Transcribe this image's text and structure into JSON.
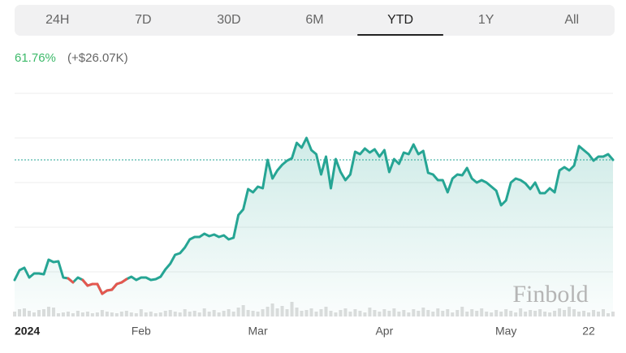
{
  "tabs": [
    "24H",
    "7D",
    "30D",
    "6M",
    "YTD",
    "1Y",
    "All"
  ],
  "active_tab": 4,
  "change": {
    "percent": "61.76%",
    "amount": "(+$26.07K)"
  },
  "watermark": "Finbold",
  "chart_data": {
    "type": "line",
    "categories": [
      "2024",
      null,
      null,
      null,
      null,
      null,
      null,
      null,
      null,
      null,
      null,
      null,
      null,
      null,
      null,
      null,
      null,
      null,
      null,
      null,
      null,
      null,
      null,
      null,
      null,
      null,
      "Feb",
      null,
      null,
      null,
      null,
      null,
      null,
      null,
      null,
      null,
      null,
      null,
      null,
      null,
      null,
      null,
      null,
      null,
      null,
      null,
      null,
      null,
      null,
      null,
      "Mar",
      null,
      null,
      null,
      null,
      null,
      null,
      null,
      null,
      null,
      null,
      null,
      null,
      null,
      null,
      null,
      null,
      null,
      null,
      null,
      null,
      null,
      null,
      null,
      null,
      null,
      "Apr",
      null,
      null,
      null,
      null,
      null,
      null,
      null,
      null,
      null,
      null,
      null,
      null,
      null,
      null,
      null,
      null,
      null,
      null,
      null,
      null,
      null,
      null,
      null,
      null,
      "May",
      null,
      null,
      null,
      null,
      null,
      null,
      null,
      null,
      null,
      null,
      null,
      null,
      null,
      null,
      null,
      null,
      "22",
      null,
      null,
      null,
      null,
      null
    ],
    "series": [
      {
        "color": "#26a594",
        "down_color": "#e5574f",
        "values": [
          45,
          57,
          60,
          48,
          53,
          53,
          52,
          70,
          67,
          68,
          48,
          47,
          42,
          48,
          45,
          38,
          40,
          40,
          28,
          32,
          33,
          40,
          42,
          46,
          49,
          45,
          48,
          48,
          45,
          46,
          49,
          58,
          65,
          76,
          78,
          85,
          95,
          98,
          98,
          102,
          99,
          101,
          98,
          100,
          95,
          97,
          125,
          132,
          157,
          153,
          160,
          158,
          193,
          170,
          180,
          187,
          192,
          195,
          214,
          208,
          220,
          205,
          200,
          175,
          197,
          158,
          194,
          178,
          168,
          175,
          203,
          200,
          207,
          202,
          206,
          197,
          205,
          178,
          194,
          188,
          202,
          200,
          212,
          200,
          204,
          177,
          175,
          168,
          168,
          153,
          170,
          175,
          174,
          183,
          170,
          165,
          168,
          165,
          160,
          155,
          137,
          143,
          165,
          170,
          168,
          164,
          157,
          165,
          152,
          152,
          158,
          153,
          180,
          184,
          180,
          186,
          210,
          205,
          200,
          192,
          197,
          197,
          200,
          193
        ]
      }
    ],
    "volume": {
      "color": "#dddddd",
      "lim": [
        0,
        20
      ],
      "values": [
        6,
        9,
        10,
        7,
        5,
        8,
        9,
        12,
        11,
        4,
        5,
        6,
        4,
        7,
        5,
        6,
        4,
        5,
        8,
        6,
        5,
        4,
        6,
        7,
        5,
        4,
        9,
        5,
        6,
        4,
        5,
        7,
        8,
        6,
        5,
        9,
        6,
        7,
        5,
        10,
        6,
        8,
        5,
        7,
        9,
        6,
        11,
        14,
        8,
        7,
        6,
        9,
        12,
        16,
        10,
        13,
        9,
        18,
        11,
        7,
        8,
        10,
        6,
        9,
        12,
        7,
        5,
        8,
        10,
        6,
        9,
        7,
        5,
        11,
        8,
        6,
        9,
        7,
        10,
        6,
        8,
        5,
        9,
        7,
        11,
        8,
        6,
        10,
        7,
        9,
        5,
        8,
        12,
        6,
        9,
        7,
        10,
        6,
        5,
        8,
        6,
        9,
        7,
        5,
        10,
        6,
        8,
        7,
        9,
        6,
        5,
        7,
        10,
        8,
        12,
        9,
        6,
        7,
        5,
        8,
        6,
        9,
        4,
        6
      ]
    },
    "ylim": [
      0,
      275
    ],
    "gridlines": [
      55,
      110,
      165,
      220,
      275
    ],
    "reference": 193,
    "grid": true
  }
}
